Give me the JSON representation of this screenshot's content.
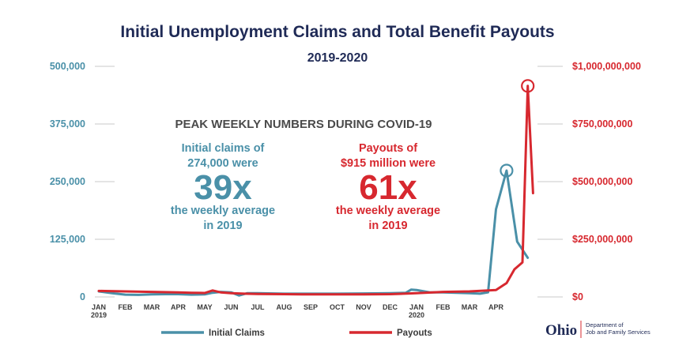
{
  "chart_data": {
    "type": "line",
    "title": "Initial Unemployment Claims and Total Benefit Payouts",
    "subtitle": "2019-2020",
    "x_tick_labels": [
      "JAN",
      "FEB",
      "MAR",
      "APR",
      "MAY",
      "JUN",
      "JUL",
      "AUG",
      "SEP",
      "OCT",
      "NOV",
      "DEC",
      "JAN",
      "FEB",
      "MAR",
      "APR"
    ],
    "x_year_labels": [
      {
        "month_index": 0,
        "label": "2019"
      },
      {
        "month_index": 12,
        "label": "2020"
      }
    ],
    "y_left": {
      "ticks": [
        "0",
        "125,000",
        "250,000",
        "375,000",
        "500,000"
      ],
      "values": [
        0,
        125000,
        250000,
        375000,
        500000
      ],
      "ylim": [
        0,
        500000
      ]
    },
    "y_right": {
      "ticks": [
        "$0",
        "$250,000,000",
        "$500,000,000",
        "$750,000,000",
        "$1,000,000,000"
      ],
      "values": [
        0,
        250000000,
        500000000,
        750000000,
        1000000000
      ],
      "ylim": [
        0,
        1000000000
      ]
    },
    "series": [
      {
        "name": "Initial Claims",
        "axis": "left",
        "color": "#4a90a8",
        "x_months": [
          0,
          0.5,
          1,
          1.5,
          2,
          2.5,
          3,
          3.5,
          4,
          4.3,
          4.6,
          5,
          5.3,
          5.6,
          6,
          7,
          8,
          9,
          10,
          11,
          11.6,
          11.8,
          12,
          12.5,
          13,
          14,
          14.4,
          14.7,
          15,
          15.4,
          15.8,
          16.2
        ],
        "values": [
          12000,
          8000,
          5000,
          4500,
          5500,
          6000,
          6000,
          5000,
          5500,
          9000,
          11000,
          10000,
          3000,
          8000,
          8000,
          7000,
          7000,
          7000,
          7500,
          8000,
          9000,
          16000,
          15000,
          10000,
          10000,
          8000,
          7000,
          10000,
          190000,
          274000,
          120000,
          85000
        ],
        "peak_marker_index": 29
      },
      {
        "name": "Payouts",
        "axis": "right",
        "color": "#d7282f",
        "x_months": [
          0,
          1,
          2,
          3,
          3.5,
          4,
          4.3,
          4.6,
          5,
          5.5,
          6,
          7,
          8,
          9,
          10,
          11,
          12,
          13,
          14,
          14.5,
          15,
          15.4,
          15.7,
          16,
          16.2,
          16.4
        ],
        "values": [
          26000000,
          24000000,
          22000000,
          20000000,
          18000000,
          17000000,
          28000000,
          20000000,
          16000000,
          14000000,
          13000000,
          12000000,
          11000000,
          11000000,
          11000000,
          12000000,
          16000000,
          22000000,
          24000000,
          27000000,
          30000000,
          60000000,
          120000000,
          150000000,
          915000000,
          450000000
        ],
        "peak_marker_index": 24
      }
    ],
    "annotations": {
      "heading": "PEAK WEEKLY NUMBERS DURING COVID-19",
      "claims": {
        "line1": "Initial claims of",
        "line2": "274,000 were",
        "big": "39x",
        "line3": "the weekly average",
        "line4": "in 2019"
      },
      "payouts": {
        "line1": "Payouts of",
        "line2": "$915 million were",
        "big": "61x",
        "line3": "the weekly average",
        "line4": "in 2019"
      }
    },
    "legend": {
      "position": "bottom",
      "items": [
        "Initial Claims",
        "Payouts"
      ]
    },
    "grid": true
  },
  "logo": {
    "wordmark": "Ohio",
    "department_line1": "Department of",
    "department_line2": "Job and Family Services"
  }
}
